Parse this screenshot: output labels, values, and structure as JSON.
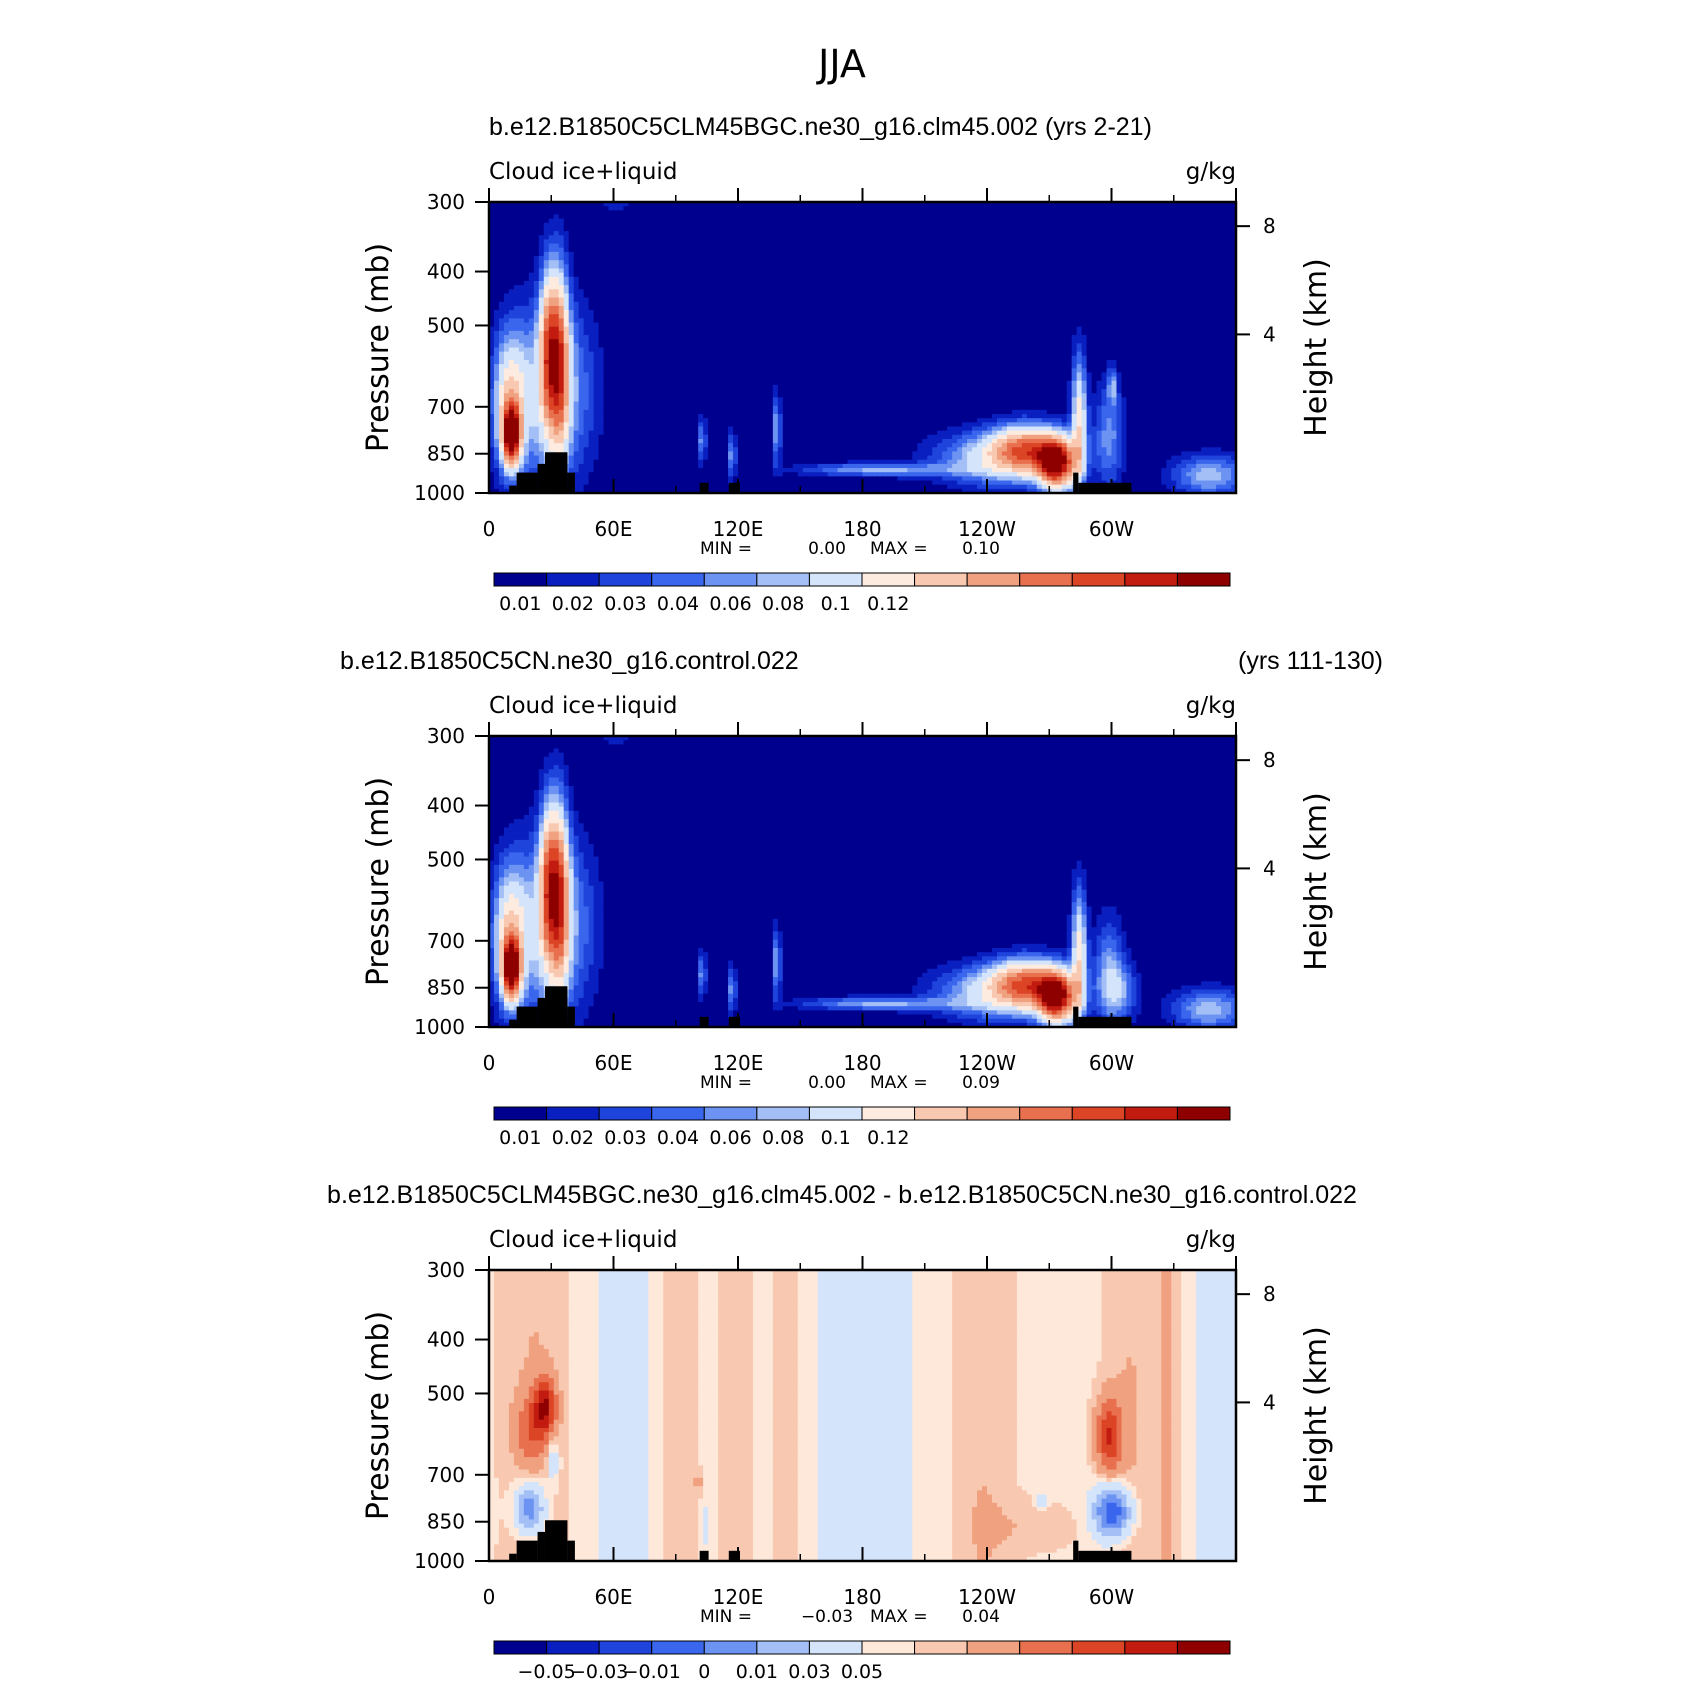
{
  "figure": {
    "title": "JJA"
  },
  "colormaps": {
    "abs": [
      "#00008f",
      "#0a1fbf",
      "#1e44dc",
      "#3a66ee",
      "#6c93f2",
      "#a3bff6",
      "#d4e4fb",
      "#fdebe0",
      "#f8c8b0",
      "#f0a17f",
      "#e8704f",
      "#dc4426",
      "#c21b10",
      "#8e0000"
    ],
    "diff": [
      "#00008f",
      "#0a1fbf",
      "#1e44dc",
      "#3a66ee",
      "#6c93f2",
      "#a3bff6",
      "#d4e4fb",
      "#fde8da",
      "#f8c8b0",
      "#f0a17f",
      "#e8704f",
      "#dc4426",
      "#c21b10",
      "#8e0000"
    ]
  },
  "panels": [
    {
      "case": "b.e12.B1850C5CLM45BGC.ne30_g16.clm45.002",
      "years": "(yrs 2-21)",
      "var_label": "Cloud ice+liquid",
      "units": "g/kg",
      "min_label": "MIN =",
      "min_value": "0.00",
      "max_label": "MAX =",
      "max_value": "0.10",
      "colorbar_labels": [
        "0.01",
        "0.02",
        "0.03",
        "0.04",
        "0.06",
        "0.08",
        "0.1",
        "0.12"
      ],
      "colormap": "abs",
      "pattern": "abs1"
    },
    {
      "case": "b.e12.B1850C5CN.ne30_g16.control.022",
      "years": "(yrs 111-130)",
      "var_label": "Cloud ice+liquid",
      "units": "g/kg",
      "min_label": "MIN =",
      "min_value": "0.00",
      "max_label": "MAX =",
      "max_value": "0.09",
      "colorbar_labels": [
        "0.01",
        "0.02",
        "0.03",
        "0.04",
        "0.06",
        "0.08",
        "0.1",
        "0.12"
      ],
      "colormap": "abs",
      "pattern": "abs2"
    },
    {
      "case": "b.e12.B1850C5CLM45BGC.ne30_g16.clm45.002 - b.e12.B1850C5CN.ne30_g16.control.022",
      "years": "",
      "var_label": "Cloud ice+liquid",
      "units": "g/kg",
      "min_label": "MIN =",
      "min_value": "−0.03",
      "max_label": "MAX =",
      "max_value": "0.04",
      "colorbar_labels": [
        "−0.05",
        "−0.03",
        "−0.01",
        "0",
        "0.01",
        "0.03",
        "0.05"
      ],
      "colormap": "diff",
      "pattern": "diff"
    }
  ],
  "chart_data": {
    "type": "heatmap",
    "title": "JJA",
    "x_axis": {
      "type": "longitude",
      "range": [
        0,
        360
      ],
      "tick_labels": [
        "0",
        "60E",
        "120E",
        "180",
        "120W",
        "60W"
      ]
    },
    "y_axis_left": {
      "label": "Pressure (mb)",
      "scale": "log",
      "range": [
        1000,
        300
      ],
      "tick_labels": [
        "300",
        "400",
        "500",
        "700",
        "850",
        "1000"
      ]
    },
    "y_axis_right": {
      "label": "Height (km)",
      "tick_labels": [
        "8",
        "4"
      ]
    },
    "panels": [
      {
        "name": "b.e12.B1850C5CLM45BGC.ne30_g16.clm45.002",
        "min": 0.0,
        "max": 0.1
      },
      {
        "name": "b.e12.B1850C5CN.ne30_g16.control.022",
        "min": 0.0,
        "max": 0.09
      },
      {
        "name": "b.e12.B1850C5CLM45BGC.ne30_g16.clm45.002 - b.e12.B1850C5CN.ne30_g16.control.022",
        "min": -0.03,
        "max": 0.04
      }
    ]
  }
}
